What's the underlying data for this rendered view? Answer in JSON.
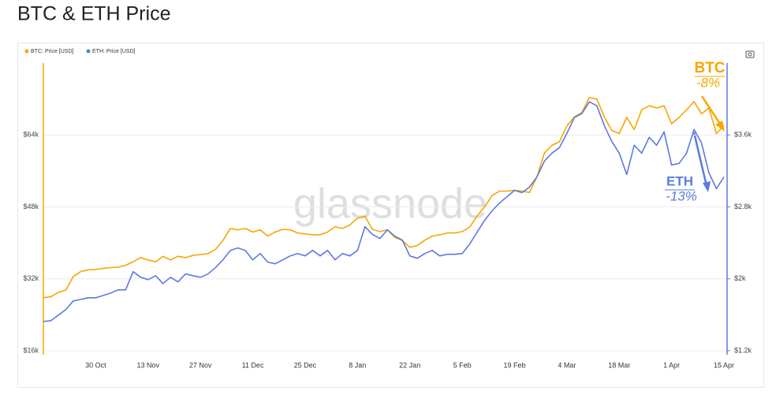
{
  "chart_data": {
    "type": "line",
    "title": "BTC & ETH Price",
    "watermark": "glassnode",
    "categories": [
      null,
      null,
      null,
      null,
      null,
      null,
      null,
      "30 Oct",
      null,
      null,
      null,
      null,
      null,
      null,
      "13 Nov",
      null,
      null,
      null,
      null,
      null,
      null,
      "27 Nov",
      null,
      null,
      null,
      null,
      null,
      null,
      "11 Dec",
      null,
      null,
      null,
      null,
      null,
      null,
      "25 Dec",
      null,
      null,
      null,
      null,
      null,
      null,
      "8 Jan",
      null,
      null,
      null,
      null,
      null,
      null,
      "22 Jan",
      null,
      null,
      null,
      null,
      null,
      null,
      "5 Feb",
      null,
      null,
      null,
      null,
      null,
      null,
      "19 Feb",
      null,
      null,
      null,
      null,
      null,
      null,
      "4 Mar",
      null,
      null,
      null,
      null,
      null,
      null,
      "18 Mar",
      null,
      null,
      null,
      null,
      null,
      null,
      "1 Apr",
      null,
      null,
      null,
      null,
      null,
      null,
      "15 Apr"
    ],
    "series": [
      {
        "name": "BTC: Price [USD]",
        "color": "#f7a600",
        "axis": "y",
        "values": [
          27800,
          28000,
          29000,
          29500,
          32500,
          33600,
          34000,
          34100,
          34300,
          34500,
          34600,
          35000,
          35800,
          36700,
          36200,
          35800,
          37000,
          36200,
          37000,
          36700,
          37200,
          37400,
          37600,
          38500,
          40500,
          43200,
          42900,
          43200,
          42400,
          42900,
          41500,
          42400,
          43000,
          42900,
          42200,
          42000,
          41800,
          41800,
          42400,
          43600,
          43200,
          44000,
          45500,
          45900,
          43000,
          42500,
          42900,
          41200,
          40500,
          39000,
          39400,
          40600,
          41500,
          41800,
          42200,
          42200,
          42500,
          43500,
          46000,
          48000,
          50500,
          51500,
          51500,
          51700,
          51500,
          51200,
          54700,
          60000,
          61700,
          62500,
          66000,
          68000,
          69000,
          72300,
          72000,
          68000,
          65000,
          64300,
          67900,
          65200,
          69600,
          70500,
          70000,
          70500,
          66500,
          67900,
          69600,
          71400,
          68700,
          70000,
          64300,
          66100
        ]
      },
      {
        "name": "ETH: Price [USD]",
        "color": "#5b7be0",
        "axis": "y2",
        "values": [
          1525,
          1534,
          1596,
          1657,
          1754,
          1771,
          1789,
          1789,
          1815,
          1842,
          1877,
          1877,
          2079,
          2017,
          1991,
          2035,
          1947,
          2017,
          1965,
          2053,
          2035,
          2017,
          2053,
          2123,
          2211,
          2316,
          2343,
          2316,
          2211,
          2281,
          2185,
          2167,
          2211,
          2255,
          2281,
          2255,
          2316,
          2255,
          2316,
          2211,
          2281,
          2255,
          2316,
          2580,
          2492,
          2448,
          2545,
          2474,
          2431,
          2255,
          2228,
          2281,
          2316,
          2255,
          2272,
          2272,
          2281,
          2387,
          2519,
          2650,
          2756,
          2844,
          2914,
          2984,
          2958,
          3020,
          3134,
          3310,
          3398,
          3459,
          3617,
          3793,
          3837,
          3969,
          3925,
          3705,
          3529,
          3398,
          3160,
          3486,
          3398,
          3573,
          3486,
          3635,
          3266,
          3284,
          3398,
          3661,
          3512,
          3178,
          3002,
          3134
        ]
      }
    ],
    "ylim": [
      16000,
      80000
    ],
    "yticks": [
      {
        "value": 16000,
        "label": "$16k"
      },
      {
        "value": 32000,
        "label": "$32k"
      },
      {
        "value": 48000,
        "label": "$48k"
      },
      {
        "value": 64000,
        "label": "$64k"
      }
    ],
    "y2lim": [
      1200,
      4400
    ],
    "y2ticks": [
      {
        "value": 1200,
        "label": "$1.2k"
      },
      {
        "value": 2000,
        "label": "$2k"
      },
      {
        "value": 2800,
        "label": "$2.8k"
      },
      {
        "value": 3600,
        "label": "$3.6k"
      }
    ],
    "grid": true,
    "legend": "top-left",
    "annotations": [
      {
        "text": "BTC",
        "color": "#f7a600"
      },
      {
        "text": "-8%",
        "color": "#f7a600"
      },
      {
        "text": "ETH",
        "color": "#5b7be0"
      },
      {
        "text": "-13%",
        "color": "#5b7be0"
      }
    ]
  }
}
